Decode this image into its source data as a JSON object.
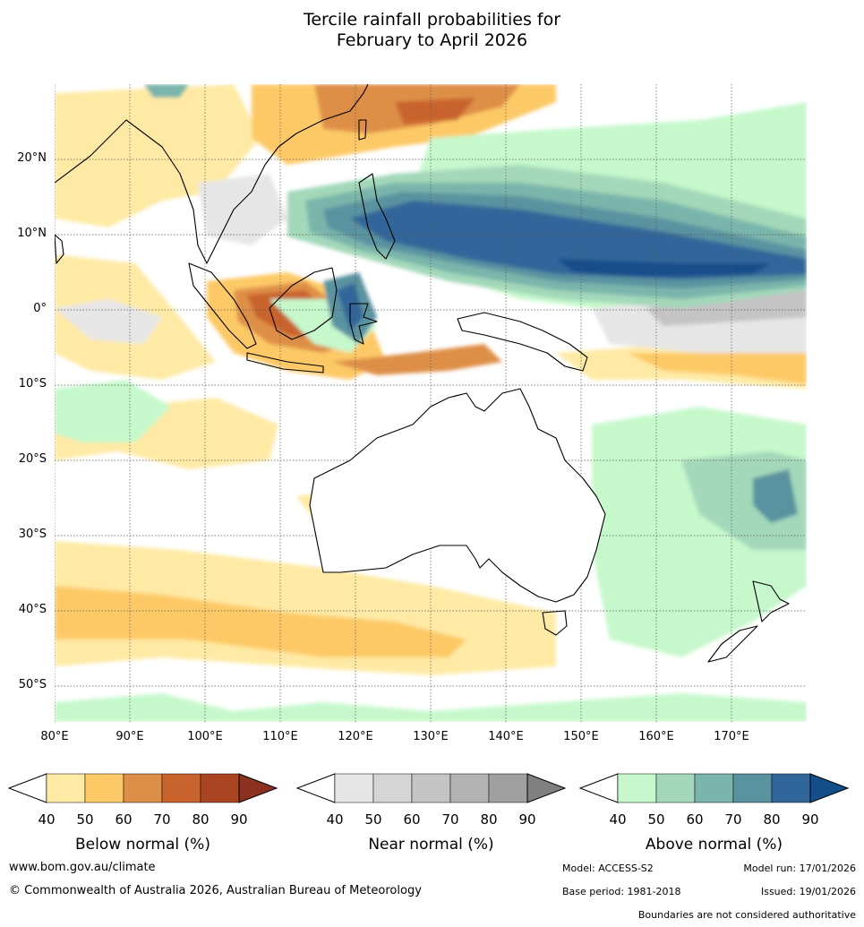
{
  "title": {
    "line1": "Tercile rainfall probabilities for",
    "line2": "February to April 2026"
  },
  "map": {
    "lat_labels": [
      "20°N",
      "10°N",
      "0°",
      "10°S",
      "20°S",
      "30°S",
      "40°S",
      "50°S"
    ],
    "lon_labels": [
      "80°E",
      "90°E",
      "100°E",
      "110°E",
      "120°E",
      "130°E",
      "140°E",
      "150°E",
      "160°E",
      "170°E"
    ]
  },
  "legends": {
    "ticks": [
      "40",
      "50",
      "60",
      "70",
      "80",
      "90"
    ],
    "below": {
      "label": "Below normal (%)",
      "colors": [
        "#ffeaa5",
        "#fdc966",
        "#de8f47",
        "#c9632d",
        "#aa4423",
        "#8c3020"
      ]
    },
    "near": {
      "label": "Near normal (%)",
      "colors": [
        "#e6e6e6",
        "#d5d5d5",
        "#c4c4c4",
        "#b3b3b3",
        "#a0a0a0",
        "#808080"
      ]
    },
    "above": {
      "label": "Above normal (%)",
      "colors": [
        "#c6f8cc",
        "#a3d8ba",
        "#7ab5ab",
        "#5a93a0",
        "#31669a",
        "#134d8a"
      ]
    }
  },
  "footer": {
    "website": "www.bom.gov.au/climate",
    "copyright": "© Commonwealth of Australia 2026, Australian Bureau of Meteorology",
    "model": "Model: ACCESS-S2",
    "model_run": "Model run: 17/01/2026",
    "base_period": "Base period: 1981-2018",
    "issued": "Issued: 19/01/2026",
    "disclaimer": "Boundaries are not considered authoritative"
  }
}
